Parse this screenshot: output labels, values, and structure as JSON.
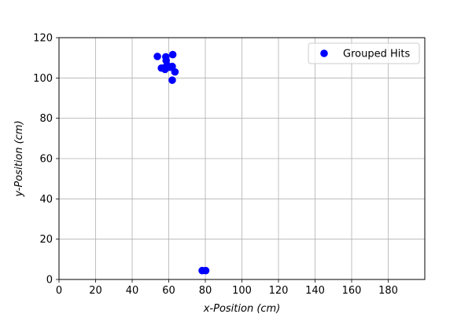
{
  "chart_data": {
    "type": "scatter",
    "title": "",
    "xlabel": "x-Position (cm)",
    "ylabel": "y-Position (cm)",
    "xlim": [
      0,
      200
    ],
    "ylim": [
      0,
      120
    ],
    "xticks": [
      0,
      20,
      40,
      60,
      80,
      100,
      120,
      140,
      160,
      180
    ],
    "yticks": [
      0,
      20,
      40,
      60,
      80,
      100,
      120
    ],
    "grid": true,
    "legend": {
      "position": "top-right",
      "entries": [
        "Grouped Hits"
      ]
    },
    "series": [
      {
        "name": "Grouped Hits",
        "color": "#0000ff",
        "marker": "circle",
        "points": [
          {
            "x": 53.8,
            "y": 110.7
          },
          {
            "x": 58.4,
            "y": 110.5
          },
          {
            "x": 62.2,
            "y": 111.6
          },
          {
            "x": 58.6,
            "y": 108.7
          },
          {
            "x": 59.1,
            "y": 106.3
          },
          {
            "x": 57.3,
            "y": 104.9
          },
          {
            "x": 56.0,
            "y": 104.9
          },
          {
            "x": 58.0,
            "y": 104.3
          },
          {
            "x": 60.7,
            "y": 105.3
          },
          {
            "x": 61.9,
            "y": 105.7
          },
          {
            "x": 63.4,
            "y": 103.0
          },
          {
            "x": 61.9,
            "y": 98.9
          },
          {
            "x": 78.3,
            "y": 4.4
          },
          {
            "x": 80.2,
            "y": 4.4
          }
        ]
      }
    ]
  }
}
